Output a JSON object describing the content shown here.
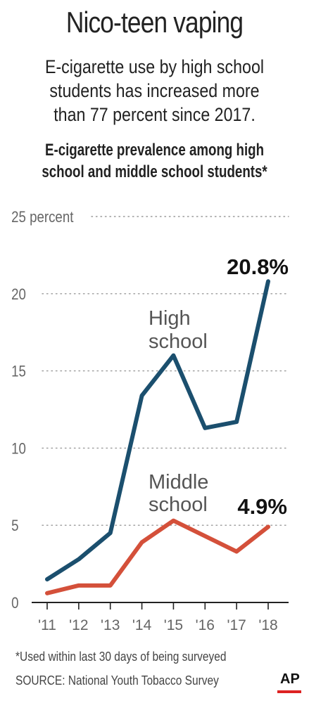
{
  "title": "Nico-teen vaping",
  "subtitle_lines": [
    "E-cigarette use by high school",
    "students has increased more",
    "than 77 percent since 2017."
  ],
  "chart_title_lines": [
    "E-cigarette prevalence among high",
    "school and middle school students*"
  ],
  "footnote": "*Used within last 30 days of being surveyed",
  "source": "SOURCE: National Youth Tobacco Survey",
  "logo": "AP",
  "colors": {
    "high_school": "#1b4f6e",
    "middle_school": "#d4503a",
    "grid": "#999999",
    "axis": "#222222"
  },
  "chart_data": {
    "type": "line",
    "title": "E-cigarette prevalence among high school and middle school students*",
    "x": [
      "'11",
      "'12",
      "'13",
      "'14",
      "'15",
      "'16",
      "'17",
      "'18"
    ],
    "ylim": [
      0,
      25
    ],
    "yticks": [
      0,
      5,
      10,
      15,
      20,
      25
    ],
    "ytick_labels": [
      "0",
      "5",
      "10",
      "15",
      "20",
      "25 percent"
    ],
    "grid": true,
    "series": [
      {
        "name": "High school",
        "label_lines": [
          "High",
          "school"
        ],
        "values": [
          1.5,
          2.8,
          4.5,
          13.4,
          16.0,
          11.3,
          11.7,
          20.8
        ],
        "end_label": "20.8%"
      },
      {
        "name": "Middle school",
        "label_lines": [
          "Middle",
          "school"
        ],
        "values": [
          0.6,
          1.1,
          1.1,
          3.9,
          5.3,
          4.3,
          3.3,
          4.9
        ],
        "end_label": "4.9%"
      }
    ]
  }
}
